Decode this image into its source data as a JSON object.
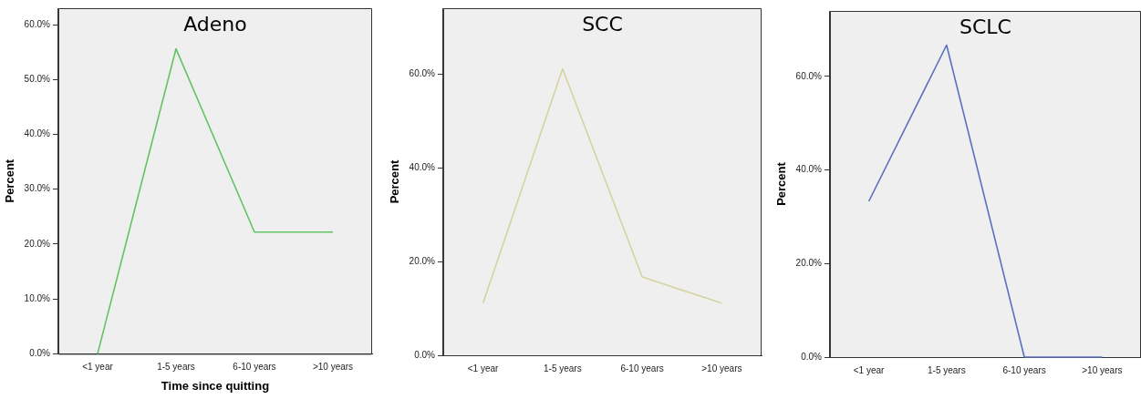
{
  "chart_data": [
    {
      "type": "line",
      "title": "Adeno",
      "xlabel": "Time since quitting",
      "ylabel": "Percent",
      "categories": [
        "<1 year",
        "1-5 years",
        "6-10 years",
        ">10 years"
      ],
      "values": [
        0,
        55.6,
        22.2,
        22.2
      ],
      "color": "#62c462",
      "ylim": [
        0,
        63
      ],
      "yticks": [
        {
          "value": 0,
          "label": "0.0%"
        },
        {
          "value": 10,
          "label": "10.0%"
        },
        {
          "value": 20,
          "label": "20.0%"
        },
        {
          "value": 30,
          "label": "30.0%"
        },
        {
          "value": 40,
          "label": "40.0%"
        },
        {
          "value": 50,
          "label": "50.0%"
        },
        {
          "value": 60,
          "label": "60.0%"
        }
      ],
      "grid": false,
      "marker": "none"
    },
    {
      "type": "line",
      "title": "SCC",
      "ylabel": "Percent",
      "categories": [
        "<1 year",
        "1-5 years",
        "6-10 years",
        ">10 years"
      ],
      "values": [
        11.1,
        61.1,
        16.7,
        11.1
      ],
      "color": "#d6d3a0",
      "ylim": [
        0,
        74
      ],
      "yticks": [
        {
          "value": 0,
          "label": "0.0%"
        },
        {
          "value": 20,
          "label": "20.0%"
        },
        {
          "value": 40,
          "label": "40.0%"
        },
        {
          "value": 60,
          "label": "60.0%"
        }
      ],
      "grid": false,
      "marker": "none"
    },
    {
      "type": "line",
      "title": "SCLC",
      "ylabel": "Percent",
      "categories": [
        "<1 year",
        "1-5 years",
        "6-10 years",
        ">10 years"
      ],
      "values": [
        33.3,
        66.7,
        0,
        0
      ],
      "color": "#5a70c0",
      "ylim": [
        0,
        74
      ],
      "yticks": [
        {
          "value": 0,
          "label": "0.0%"
        },
        {
          "value": 20,
          "label": "20.0%"
        },
        {
          "value": 40,
          "label": "40.0%"
        },
        {
          "value": 60,
          "label": "60.0%"
        }
      ],
      "grid": false,
      "marker": "none"
    }
  ]
}
